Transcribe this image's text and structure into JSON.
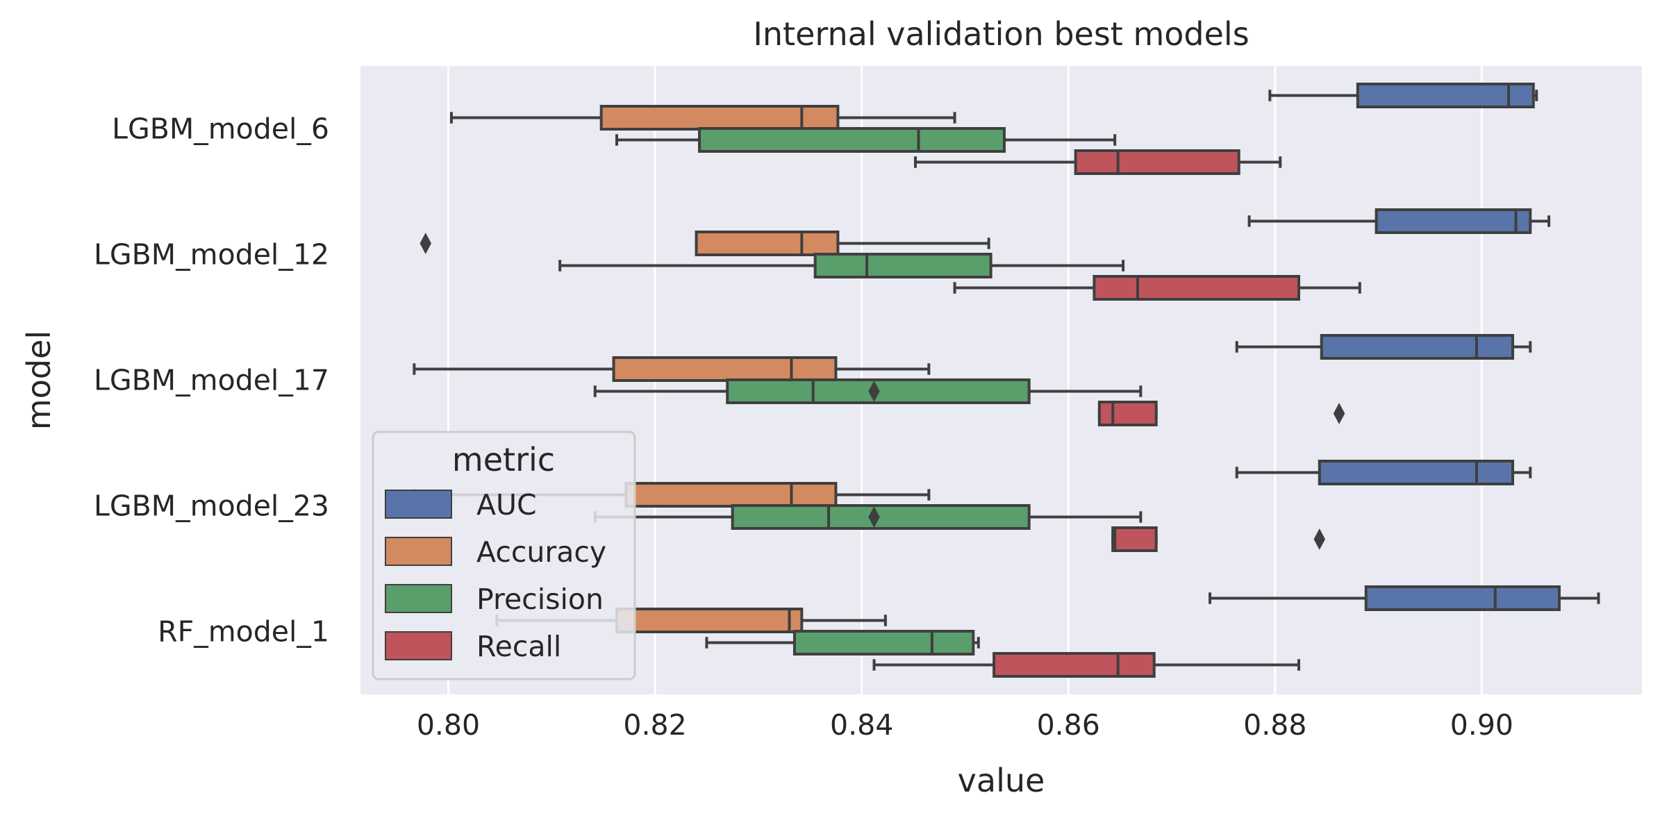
{
  "chart_data": {
    "type": "boxplot",
    "orientation": "horizontal",
    "title": "Internal validation best models",
    "xlabel": "value",
    "ylabel": "model",
    "xlim": [
      0.7915,
      0.9155
    ],
    "xticks": [
      "0.80",
      "0.82",
      "0.84",
      "0.86",
      "0.88",
      "0.90"
    ],
    "xtick_values": [
      0.8,
      0.82,
      0.84,
      0.86,
      0.88,
      0.9
    ],
    "grid": true,
    "background": "#eaeaf2",
    "categories": [
      "LGBM_model_6",
      "LGBM_model_12",
      "LGBM_model_17",
      "LGBM_model_23",
      "RF_model_1"
    ],
    "legend": {
      "title": "metric",
      "placement": "lower-left",
      "entries": [
        "AUC",
        "Accuracy",
        "Precision",
        "Recall"
      ]
    },
    "series": [
      {
        "name": "AUC",
        "color": "#5874a8",
        "boxes": [
          {
            "whislo": 0.8795,
            "q1": 0.888,
            "med": 0.9026,
            "q3": 0.905,
            "whishi": 0.9053,
            "fliers": []
          },
          {
            "whislo": 0.8775,
            "q1": 0.8898,
            "med": 0.9033,
            "q3": 0.9047,
            "whishi": 0.9065,
            "fliers": []
          },
          {
            "whislo": 0.8763,
            "q1": 0.8845,
            "med": 0.8995,
            "q3": 0.903,
            "whishi": 0.9047,
            "fliers": []
          },
          {
            "whislo": 0.8763,
            "q1": 0.8843,
            "med": 0.8995,
            "q3": 0.903,
            "whishi": 0.9047,
            "fliers": []
          },
          {
            "whislo": 0.8737,
            "q1": 0.8888,
            "med": 0.9013,
            "q3": 0.9075,
            "whishi": 0.9113,
            "fliers": []
          }
        ]
      },
      {
        "name": "Accuracy",
        "color": "#d38a60",
        "boxes": [
          {
            "whislo": 0.8003,
            "q1": 0.8148,
            "med": 0.8342,
            "q3": 0.8377,
            "whishi": 0.849,
            "fliers": []
          },
          {
            "whislo": 0.824,
            "q1": 0.824,
            "med": 0.8342,
            "q3": 0.8377,
            "whishi": 0.8523,
            "fliers": [
              0.7978
            ]
          },
          {
            "whislo": 0.7967,
            "q1": 0.816,
            "med": 0.8332,
            "q3": 0.8375,
            "whishi": 0.8465,
            "fliers": []
          },
          {
            "whislo": 0.7967,
            "q1": 0.8172,
            "med": 0.8332,
            "q3": 0.8375,
            "whishi": 0.8465,
            "fliers": []
          },
          {
            "whislo": 0.8047,
            "q1": 0.8163,
            "med": 0.833,
            "q3": 0.8342,
            "whishi": 0.8423,
            "fliers": []
          }
        ]
      },
      {
        "name": "Precision",
        "color": "#5a9e6c",
        "boxes": [
          {
            "whislo": 0.8163,
            "q1": 0.8243,
            "med": 0.8455,
            "q3": 0.8538,
            "whishi": 0.8645,
            "fliers": []
          },
          {
            "whislo": 0.8108,
            "q1": 0.8355,
            "med": 0.8405,
            "q3": 0.8525,
            "whishi": 0.8653,
            "fliers": []
          },
          {
            "whislo": 0.8142,
            "q1": 0.827,
            "med": 0.8353,
            "q3": 0.8562,
            "whishi": 0.867,
            "fliers": [
              0.8412
            ]
          },
          {
            "whislo": 0.8142,
            "q1": 0.8275,
            "med": 0.8368,
            "q3": 0.8562,
            "whishi": 0.867,
            "fliers": [
              0.8412
            ]
          },
          {
            "whislo": 0.825,
            "q1": 0.8335,
            "med": 0.8468,
            "q3": 0.8508,
            "whishi": 0.8513,
            "fliers": []
          }
        ]
      },
      {
        "name": "Recall",
        "color": "#c0545d",
        "boxes": [
          {
            "whislo": 0.8452,
            "q1": 0.8607,
            "med": 0.8648,
            "q3": 0.8765,
            "whishi": 0.8805,
            "fliers": []
          },
          {
            "whislo": 0.849,
            "q1": 0.8625,
            "med": 0.8667,
            "q3": 0.8823,
            "whishi": 0.8882,
            "fliers": []
          },
          {
            "whislo": 0.863,
            "q1": 0.863,
            "med": 0.8643,
            "q3": 0.8685,
            "whishi": 0.8685,
            "fliers": [
              0.8862
            ]
          },
          {
            "whislo": 0.8643,
            "q1": 0.8643,
            "med": 0.8645,
            "q3": 0.8685,
            "whishi": 0.8685,
            "fliers": [
              0.8843
            ]
          },
          {
            "whislo": 0.8412,
            "q1": 0.8528,
            "med": 0.8648,
            "q3": 0.8683,
            "whishi": 0.8823,
            "fliers": []
          }
        ]
      }
    ]
  }
}
